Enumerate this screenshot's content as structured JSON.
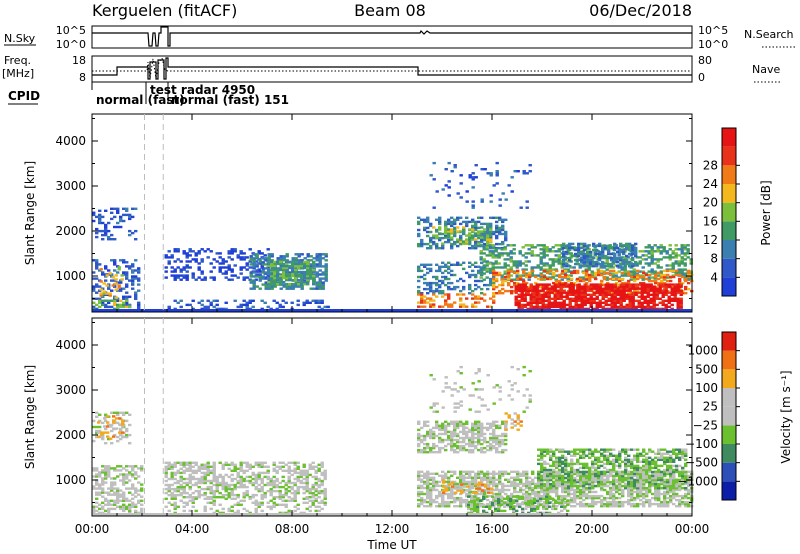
{
  "header": {
    "station": "Kerguelen (fitACF)",
    "beam": "Beam 08",
    "date": "06/Dec/2018"
  },
  "status_panel": {
    "nsky_label": "N.Sky",
    "nsky_ticks": [
      "10^5",
      "10^0"
    ],
    "nsearch_label": "N.Search",
    "nsearch_ticks": [
      "10^5",
      "10^0"
    ],
    "freq_label": "Freq.",
    "freq_unit": "[MHz]",
    "freq_ticks": [
      "18",
      "8"
    ],
    "nave_label": "Nave",
    "nave_ticks": [
      "80",
      "0"
    ],
    "cpid_label": "CPID",
    "cpid_segments": [
      {
        "text": "normal (fast)",
        "t": 0.15
      },
      {
        "text": "test radar 4950",
        "t": 2.55
      },
      {
        "text": "normal (fast) 151",
        "t": 3.05
      }
    ]
  },
  "colors": {
    "power_scale": [
      "#1f3fd6",
      "#2f58c8",
      "#3a7fb0",
      "#3f9a66",
      "#7cbf3a",
      "#f2b81e",
      "#f07a17",
      "#e8331a",
      "#e61414"
    ],
    "velocity_scale": [
      "#0c1ea8",
      "#2c4fb8",
      "#3f8a5f",
      "#6bc030",
      "#bfbfbf",
      "#bfbfbf",
      "#f2a91e",
      "#f07015",
      "#e02010"
    ]
  },
  "chart_data": [
    {
      "type": "heatmap",
      "name": "power",
      "ylabel": "Slant Range [km]",
      "xlabel": "Time UT",
      "xlim": [
        0,
        24
      ],
      "ylim": [
        200,
        4600
      ],
      "x_ticks": [
        0,
        4,
        8,
        12,
        16,
        20,
        24
      ],
      "x_tick_labels": [
        "00:00",
        "04:00",
        "08:00",
        "12:00",
        "16:00",
        "20:00",
        "00:00"
      ],
      "y_ticks": [
        1000,
        2000,
        3000,
        4000
      ],
      "y_tick_labels": [
        "1000",
        "2000",
        "3000",
        "4000"
      ],
      "colorbar_label": "Power [dB]",
      "colorbar_ticks": [
        "4",
        "8",
        "12",
        "16",
        "20",
        "24",
        "28"
      ],
      "regions": [
        {
          "t0": 0.0,
          "t1": 1.9,
          "r0": 250,
          "r1": 1350,
          "level": 1,
          "density": 0.35
        },
        {
          "t0": 0.3,
          "t1": 1.2,
          "r0": 500,
          "r1": 1200,
          "level": 5,
          "density": 0.25
        },
        {
          "t0": 0.0,
          "t1": 1.8,
          "r0": 1800,
          "r1": 2500,
          "level": 1,
          "density": 0.25
        },
        {
          "t0": 0.0,
          "t1": 1.5,
          "r0": 250,
          "r1": 450,
          "level": 4,
          "density": 0.45
        },
        {
          "t0": 2.9,
          "t1": 7.0,
          "r0": 900,
          "r1": 1600,
          "level": 0,
          "density": 0.3
        },
        {
          "t0": 2.9,
          "t1": 9.5,
          "r0": 250,
          "r1": 450,
          "level": 1,
          "density": 0.3
        },
        {
          "t0": 6.3,
          "t1": 9.3,
          "r0": 700,
          "r1": 1500,
          "level": 2,
          "density": 0.6
        },
        {
          "t0": 7.0,
          "t1": 8.9,
          "r0": 800,
          "r1": 1300,
          "level": 3,
          "density": 0.7
        },
        {
          "t0": 13.0,
          "t1": 16.5,
          "r0": 1600,
          "r1": 2300,
          "level": 2,
          "density": 0.45
        },
        {
          "t0": 13.6,
          "t1": 15.9,
          "r0": 1700,
          "r1": 2100,
          "level": 4,
          "density": 0.35
        },
        {
          "t0": 13.0,
          "t1": 16.0,
          "r0": 600,
          "r1": 1300,
          "level": 2,
          "density": 0.35
        },
        {
          "t0": 15.5,
          "t1": 24.0,
          "r0": 900,
          "r1": 1700,
          "level": 3,
          "density": 0.45
        },
        {
          "t0": 18.8,
          "t1": 21.8,
          "r0": 1200,
          "r1": 1700,
          "level": 2,
          "density": 0.6
        },
        {
          "t0": 16.0,
          "t1": 24.0,
          "r0": 600,
          "r1": 1100,
          "level": 6,
          "density": 0.45
        },
        {
          "t0": 16.9,
          "t1": 23.6,
          "r0": 250,
          "r1": 800,
          "level": 8,
          "density": 0.8
        },
        {
          "t0": 13.0,
          "t1": 16.0,
          "r0": 300,
          "r1": 600,
          "level": 6,
          "density": 0.4
        },
        {
          "t0": 13.5,
          "t1": 17.5,
          "r0": 2500,
          "r1": 3500,
          "level": 1,
          "density": 0.08
        }
      ]
    },
    {
      "type": "heatmap",
      "name": "velocity",
      "ylabel": "Slant Range [km]",
      "xlabel": "Time UT",
      "xlim": [
        0,
        24
      ],
      "ylim": [
        200,
        4600
      ],
      "x_ticks": [
        0,
        4,
        8,
        12,
        16,
        20,
        24
      ],
      "x_tick_labels": [
        "00:00",
        "04:00",
        "08:00",
        "12:00",
        "16:00",
        "20:00",
        "00:00"
      ],
      "y_ticks": [
        1000,
        2000,
        3000,
        4000
      ],
      "y_tick_labels": [
        "1000",
        "2000",
        "3000",
        "4000"
      ],
      "colorbar_label": "Velocity [m s⁻¹]",
      "colorbar_ticks": [
        "1000",
        "500",
        "100",
        "25",
        "−25",
        "−100",
        "−500",
        "−1000"
      ],
      "regions": [
        {
          "t0": 0.0,
          "t1": 2.0,
          "r0": 250,
          "r1": 1300,
          "level": 4,
          "density": 0.5
        },
        {
          "t0": 0.0,
          "t1": 1.5,
          "r0": 1800,
          "r1": 2500,
          "level": 4,
          "density": 0.3
        },
        {
          "t0": 0.2,
          "t1": 1.2,
          "r0": 1900,
          "r1": 2400,
          "level": 6,
          "density": 0.25
        },
        {
          "t0": 2.9,
          "t1": 9.3,
          "r0": 600,
          "r1": 1400,
          "level": 4,
          "density": 0.55
        },
        {
          "t0": 2.9,
          "t1": 9.3,
          "r0": 250,
          "r1": 600,
          "level": 4,
          "density": 0.3
        },
        {
          "t0": 13.0,
          "t1": 16.5,
          "r0": 1600,
          "r1": 2300,
          "level": 4,
          "density": 0.6
        },
        {
          "t0": 13.0,
          "t1": 24.0,
          "r0": 400,
          "r1": 1200,
          "level": 4,
          "density": 0.65
        },
        {
          "t0": 17.8,
          "t1": 23.8,
          "r0": 800,
          "r1": 1700,
          "level": 3,
          "density": 0.65
        },
        {
          "t0": 15.0,
          "t1": 19.0,
          "r0": 250,
          "r1": 650,
          "level": 3,
          "density": 0.5
        },
        {
          "t0": 14.0,
          "t1": 16.0,
          "r0": 700,
          "r1": 1000,
          "level": 6,
          "density": 0.35
        },
        {
          "t0": 16.5,
          "t1": 17.2,
          "r0": 2100,
          "r1": 2500,
          "level": 6,
          "density": 0.4
        },
        {
          "t0": 13.5,
          "t1": 17.5,
          "r0": 2500,
          "r1": 3500,
          "level": 4,
          "density": 0.1
        }
      ]
    }
  ]
}
